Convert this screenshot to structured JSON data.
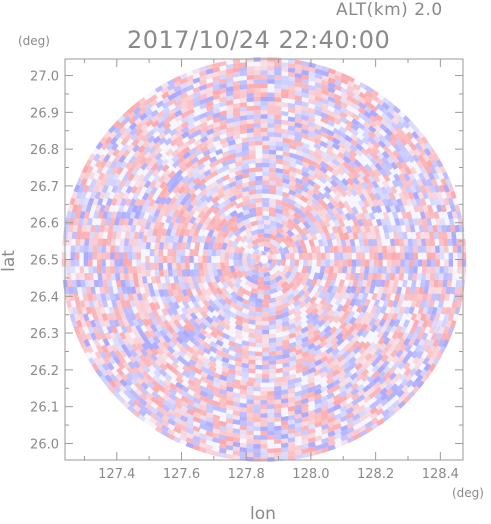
{
  "header": {
    "altitude_label": "ALT(km) 2.0",
    "timestamp": "2017/10/24 22:40:00"
  },
  "chart_data": {
    "type": "heatmap",
    "title": "2017/10/24 22:40:00",
    "subtitle": "ALT(km) 2.0",
    "xlabel": "lon",
    "ylabel": "lat",
    "x_unit": "(deg)",
    "y_unit": "(deg)",
    "xlim": [
      127.24,
      128.47
    ],
    "ylim": [
      25.955,
      27.045
    ],
    "x_ticks": [
      127.4,
      127.6,
      127.8,
      128.0,
      128.2,
      128.4
    ],
    "x_tick_labels": [
      "127.4",
      "127.6",
      "127.8",
      "128.0",
      "128.2",
      "128.4"
    ],
    "y_ticks": [
      26.0,
      26.1,
      26.2,
      26.3,
      26.4,
      26.5,
      26.6,
      26.7,
      26.8,
      26.9,
      27.0
    ],
    "y_tick_labels": [
      "26.0",
      "26.1",
      "26.2",
      "26.3",
      "26.4",
      "26.5",
      "26.6",
      "26.7",
      "26.8",
      "26.9",
      "27.0"
    ],
    "radar_center": {
      "lon": 127.855,
      "lat": 26.5
    },
    "radar_extent_lat_deg": 0.55,
    "grid": false,
    "colors": {
      "positive": "#ff8c8c",
      "negative": "#8c8cff",
      "axis": "#9a9a9a",
      "text": "#8a8a8a"
    }
  }
}
